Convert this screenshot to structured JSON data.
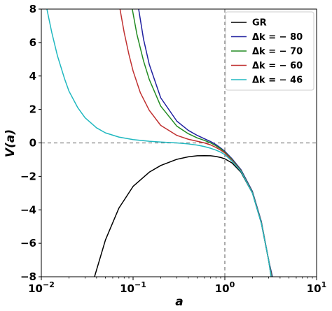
{
  "chart_data": {
    "type": "line",
    "xlabel": "a",
    "ylabel": "V(a)",
    "xscale": "log",
    "xlim": [
      0.01,
      10
    ],
    "ylim": [
      -8,
      8
    ],
    "xticks": [
      {
        "value": 0.01,
        "base": "10",
        "exp": "−2"
      },
      {
        "value": 0.1,
        "base": "10",
        "exp": "−1"
      },
      {
        "value": 1,
        "base": "10",
        "exp": "0"
      },
      {
        "value": 10,
        "base": "10",
        "exp": "1"
      }
    ],
    "yticks": [
      -8,
      -6,
      -4,
      -2,
      0,
      2,
      4,
      6,
      8
    ],
    "ytick_labels": [
      "−8",
      "−6",
      "−4",
      "−2",
      "0",
      "2",
      "4",
      "6",
      "8"
    ],
    "reference_lines": {
      "x": 1,
      "y": 0,
      "style": "dashed",
      "color": "#7f7f7f"
    },
    "legend_position": "top-right",
    "series": [
      {
        "name": "GR",
        "color": "#000000",
        "points": [
          [
            0.038,
            -8.0
          ],
          [
            0.05,
            -5.8
          ],
          [
            0.07,
            -3.9
          ],
          [
            0.1,
            -2.6
          ],
          [
            0.15,
            -1.75
          ],
          [
            0.2,
            -1.35
          ],
          [
            0.3,
            -0.98
          ],
          [
            0.4,
            -0.83
          ],
          [
            0.5,
            -0.77
          ],
          [
            0.6,
            -0.76
          ],
          [
            0.7,
            -0.77
          ],
          [
            0.8,
            -0.81
          ],
          [
            0.9,
            -0.87
          ],
          [
            1.0,
            -0.95
          ],
          [
            1.2,
            -1.2
          ],
          [
            1.5,
            -1.75
          ],
          [
            2.0,
            -3.0
          ],
          [
            2.5,
            -4.8
          ],
          [
            3.0,
            -7.0
          ],
          [
            3.2,
            -8.0
          ]
        ]
      },
      {
        "name": "Δk = − 80",
        "color": "#2020a0",
        "points": [
          [
            0.115,
            8.0
          ],
          [
            0.13,
            6.2
          ],
          [
            0.15,
            4.7
          ],
          [
            0.2,
            2.7
          ],
          [
            0.3,
            1.3
          ],
          [
            0.4,
            0.75
          ],
          [
            0.5,
            0.45
          ],
          [
            0.6,
            0.25
          ],
          [
            0.7,
            0.08
          ],
          [
            0.8,
            -0.1
          ],
          [
            0.9,
            -0.3
          ],
          [
            1.0,
            -0.5
          ],
          [
            1.2,
            -0.95
          ],
          [
            1.5,
            -1.6
          ],
          [
            2.0,
            -2.9
          ],
          [
            2.5,
            -4.7
          ],
          [
            3.0,
            -7.0
          ],
          [
            3.3,
            -8.0
          ]
        ]
      },
      {
        "name": "Δk = − 70",
        "color": "#228b22",
        "points": [
          [
            0.098,
            8.0
          ],
          [
            0.11,
            6.5
          ],
          [
            0.13,
            4.9
          ],
          [
            0.15,
            3.8
          ],
          [
            0.2,
            2.2
          ],
          [
            0.3,
            1.0
          ],
          [
            0.4,
            0.55
          ],
          [
            0.5,
            0.3
          ],
          [
            0.6,
            0.15
          ],
          [
            0.7,
            0.0
          ],
          [
            0.8,
            -0.17
          ],
          [
            0.9,
            -0.35
          ],
          [
            1.0,
            -0.55
          ],
          [
            1.2,
            -1.0
          ],
          [
            1.5,
            -1.65
          ],
          [
            2.0,
            -2.95
          ],
          [
            2.5,
            -4.75
          ],
          [
            3.0,
            -7.0
          ],
          [
            3.25,
            -8.0
          ]
        ]
      },
      {
        "name": "Δk = − 60",
        "color": "#c03030",
        "points": [
          [
            0.072,
            8.0
          ],
          [
            0.08,
            6.6
          ],
          [
            0.09,
            5.3
          ],
          [
            0.1,
            4.3
          ],
          [
            0.12,
            3.0
          ],
          [
            0.15,
            1.95
          ],
          [
            0.2,
            1.05
          ],
          [
            0.3,
            0.45
          ],
          [
            0.4,
            0.22
          ],
          [
            0.5,
            0.1
          ],
          [
            0.6,
            0.0
          ],
          [
            0.7,
            -0.12
          ],
          [
            0.8,
            -0.27
          ],
          [
            0.9,
            -0.43
          ],
          [
            1.0,
            -0.6
          ],
          [
            1.2,
            -1.05
          ],
          [
            1.5,
            -1.68
          ],
          [
            2.0,
            -2.98
          ],
          [
            2.5,
            -4.78
          ],
          [
            3.0,
            -7.0
          ],
          [
            3.22,
            -8.0
          ]
        ]
      },
      {
        "name": "Δk = − 46",
        "color": "#20b8c0",
        "points": [
          [
            0.0115,
            8.0
          ],
          [
            0.013,
            6.6
          ],
          [
            0.015,
            5.2
          ],
          [
            0.018,
            3.8
          ],
          [
            0.02,
            3.1
          ],
          [
            0.025,
            2.1
          ],
          [
            0.03,
            1.5
          ],
          [
            0.04,
            0.9
          ],
          [
            0.05,
            0.6
          ],
          [
            0.07,
            0.35
          ],
          [
            0.1,
            0.2
          ],
          [
            0.15,
            0.1
          ],
          [
            0.2,
            0.05
          ],
          [
            0.3,
            0.0
          ],
          [
            0.4,
            -0.06
          ],
          [
            0.5,
            -0.13
          ],
          [
            0.6,
            -0.22
          ],
          [
            0.7,
            -0.32
          ],
          [
            0.8,
            -0.43
          ],
          [
            0.9,
            -0.55
          ],
          [
            1.0,
            -0.7
          ],
          [
            1.2,
            -1.1
          ],
          [
            1.5,
            -1.7
          ],
          [
            2.0,
            -3.0
          ],
          [
            2.5,
            -4.8
          ],
          [
            3.0,
            -7.0
          ],
          [
            3.2,
            -8.0
          ]
        ]
      }
    ]
  }
}
